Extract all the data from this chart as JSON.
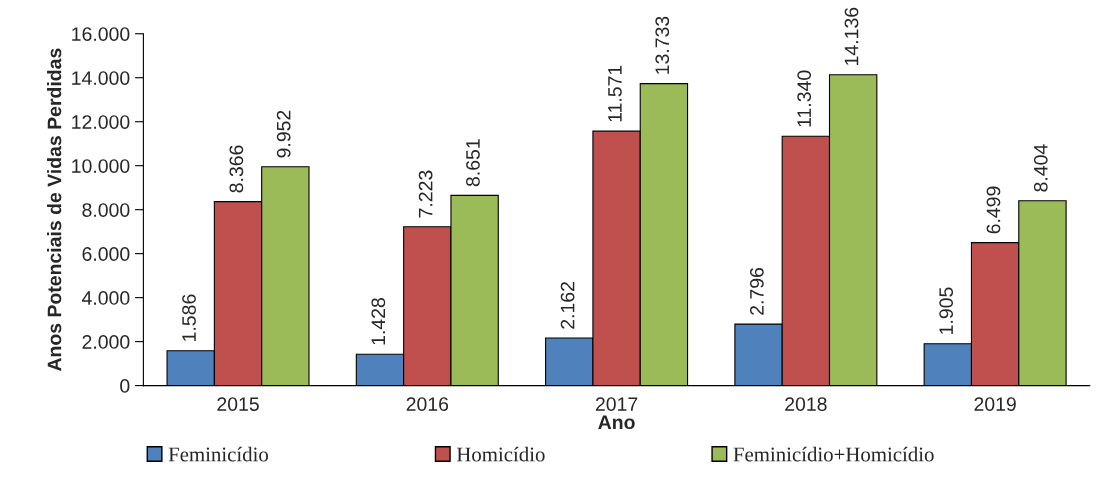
{
  "chart_data": {
    "type": "bar",
    "xlabel": "Ano",
    "ylabel": "Anos Potenciais de Vidas Perdidas",
    "categories": [
      "2015",
      "2016",
      "2017",
      "2018",
      "2019"
    ],
    "series": [
      {
        "name": "Feminicídio",
        "color": "#4f81bd",
        "values": [
          1586,
          1428,
          2162,
          2796,
          1905
        ],
        "value_labels": [
          "1.586",
          "1.428",
          "2.162",
          "2.796",
          "1.905"
        ]
      },
      {
        "name": "Homicídio",
        "color": "#c0504d",
        "values": [
          8366,
          7223,
          11571,
          11340,
          6499
        ],
        "value_labels": [
          "8.366",
          "7.223",
          "11.571",
          "11.340",
          "6.499"
        ]
      },
      {
        "name": "Feminicídio+Homicídio",
        "color": "#9bbb59",
        "values": [
          9952,
          8651,
          13733,
          14136,
          8404
        ],
        "value_labels": [
          "9.952",
          "8.651",
          "13.733",
          "14.136",
          "8.404"
        ]
      }
    ],
    "ylim": [
      0,
      16000
    ],
    "yticks": [
      0,
      {
        "value": 2000,
        "label": "2.000"
      },
      {
        "value": 4000,
        "label": "4.000"
      },
      {
        "value": 6000,
        "label": "6.000"
      },
      {
        "value": 8000,
        "label": "8.000"
      },
      {
        "value": 10000,
        "label": "10.000"
      },
      {
        "value": 12000,
        "label": "12.000"
      },
      {
        "value": 14000,
        "label": "14.000"
      },
      {
        "value": 16000,
        "label": "16.000"
      }
    ],
    "grid": false,
    "legend": "bottom"
  }
}
